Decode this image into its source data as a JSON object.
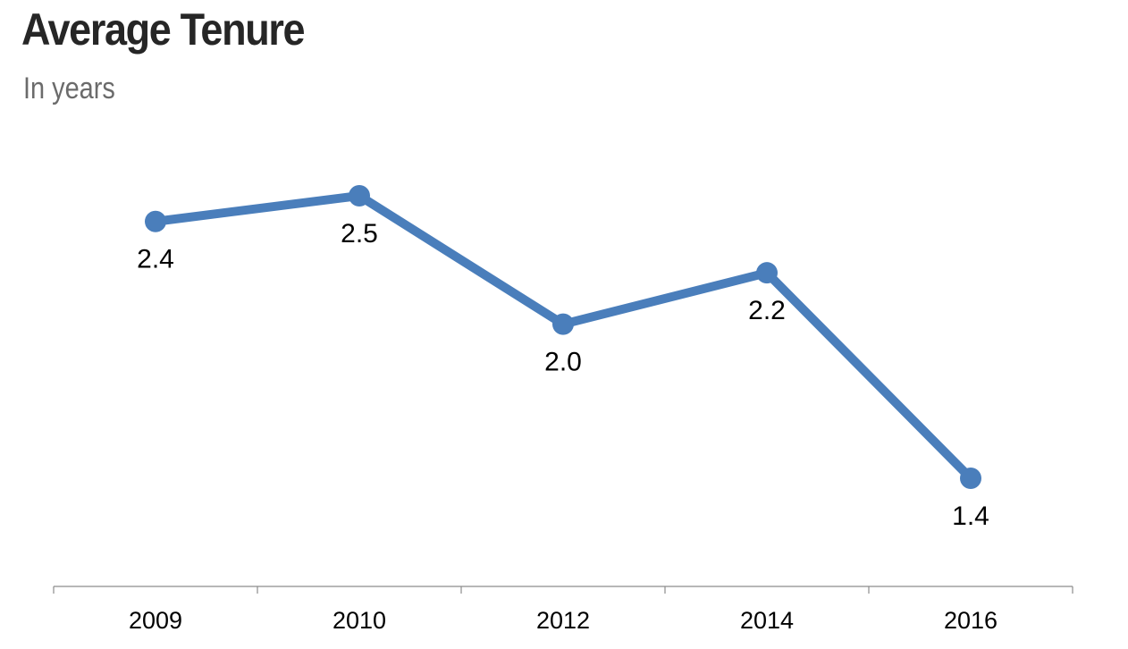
{
  "header": {
    "title": "Average Tenure",
    "subtitle": "In years"
  },
  "chart_data": {
    "type": "line",
    "title": "Average Tenure",
    "subtitle": "In years",
    "xlabel": "",
    "ylabel": "",
    "categories": [
      "2009",
      "2010",
      "2012",
      "2014",
      "2016"
    ],
    "series": [
      {
        "values": [
          2.4,
          2.5,
          2.0,
          2.2,
          1.4
        ],
        "labels": [
          "2.4",
          "2.5",
          "2.0",
          "2.2",
          "1.4"
        ],
        "color": "#4a7ebb"
      }
    ],
    "data_labels_position": "below",
    "grid": false,
    "legend": "none",
    "axis_color": "#8c8c8c"
  }
}
